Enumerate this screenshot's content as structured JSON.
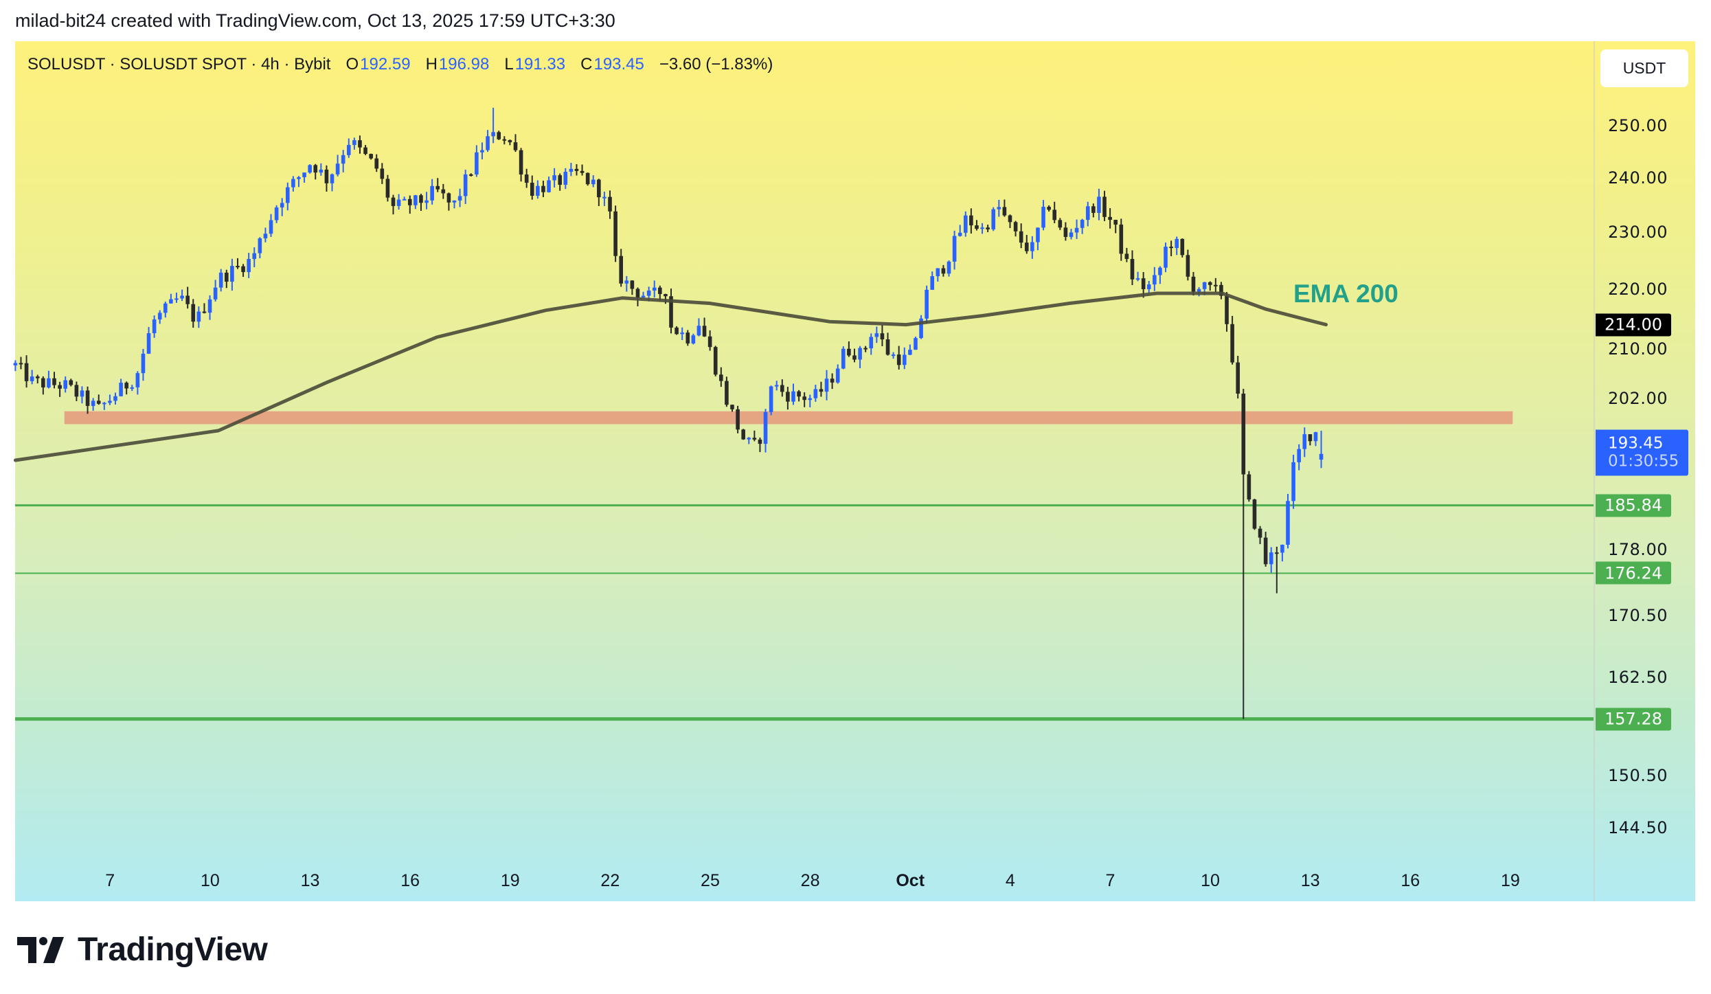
{
  "header": {
    "title": "milad-bit24 created with TradingView.com, Oct 13, 2025 17:59 UTC+3:30"
  },
  "legend": {
    "symbol": "SOLUSDT · SOLUSDT SPOT · 4h · Bybit",
    "o_label": "O",
    "o": "192.59",
    "h_label": "H",
    "h": "196.98",
    "l_label": "L",
    "l": "191.33",
    "c_label": "C",
    "c": "193.45",
    "change": "−3.60 (−1.83%)"
  },
  "currency_button": "USDT",
  "annotation": {
    "ema_label": "EMA 200"
  },
  "current_price": {
    "price": "193.45",
    "countdown": "01:30:55"
  },
  "footer": {
    "brand": "TradingView"
  },
  "colors": {
    "up": "#2962ff",
    "down": "#2a2a2a",
    "ema": "#4a4a38",
    "zone": "#e49c7f",
    "support": "#4caf50",
    "accent": "#22a08a"
  },
  "chart_data": {
    "type": "candlestick",
    "timeframe": "4h",
    "x_unit": "days since Sep 1 2025 (Oct 1 = 30)",
    "y_scale": "log",
    "price_ticks": [
      "250.00",
      "240.00",
      "230.00",
      "220.00",
      "210.00",
      "202.00",
      "178.00",
      "170.50",
      "162.50",
      "150.50",
      "144.50"
    ],
    "time_ticks": [
      {
        "t": 6,
        "label": "7"
      },
      {
        "t": 9,
        "label": "10"
      },
      {
        "t": 12,
        "label": "13"
      },
      {
        "t": 15,
        "label": "16"
      },
      {
        "t": 18,
        "label": "19"
      },
      {
        "t": 21,
        "label": "22"
      },
      {
        "t": 24,
        "label": "25"
      },
      {
        "t": 27,
        "label": "28"
      },
      {
        "t": 30,
        "label": "Oct"
      },
      {
        "t": 33,
        "label": "4"
      },
      {
        "t": 36,
        "label": "7"
      },
      {
        "t": 39,
        "label": "10"
      },
      {
        "t": 42,
        "label": "13"
      },
      {
        "t": 45,
        "label": "16"
      },
      {
        "t": 48,
        "label": "19"
      }
    ],
    "price_path": [
      [
        3.16,
        207.3
      ],
      [
        3.68,
        204.6
      ],
      [
        4.66,
        204.0
      ],
      [
        5.65,
        200.3
      ],
      [
        6.79,
        205.6
      ],
      [
        7.28,
        214.5
      ],
      [
        8.1,
        218.6
      ],
      [
        8.59,
        214.5
      ],
      [
        9.25,
        221.8
      ],
      [
        10.23,
        225.1
      ],
      [
        11.05,
        235.6
      ],
      [
        12.03,
        243.0
      ],
      [
        12.52,
        239.6
      ],
      [
        13.18,
        247.2
      ],
      [
        13.99,
        241.8
      ],
      [
        14.48,
        234.5
      ],
      [
        15.3,
        235.6
      ],
      [
        15.79,
        237.6
      ],
      [
        16.28,
        234.5
      ],
      [
        16.78,
        240.9
      ],
      [
        17.27,
        247.2
      ],
      [
        17.76,
        248.4
      ],
      [
        18.09,
        246.1
      ],
      [
        18.58,
        237.6
      ],
      [
        19.39,
        239.2
      ],
      [
        20.05,
        240.9
      ],
      [
        20.7,
        237.6
      ],
      [
        21.03,
        232.4
      ],
      [
        21.19,
        222.7
      ],
      [
        21.69,
        220.0
      ],
      [
        22.18,
        218.6
      ],
      [
        22.67,
        220.0
      ],
      [
        22.83,
        213.6
      ],
      [
        23.32,
        211.9
      ],
      [
        23.65,
        214.5
      ],
      [
        23.98,
        210.0
      ],
      [
        24.47,
        202.0
      ],
      [
        24.96,
        196.0
      ],
      [
        25.29,
        194.3
      ],
      [
        25.61,
        197.0
      ],
      [
        25.78,
        204.6
      ],
      [
        26.27,
        202.7
      ],
      [
        27.09,
        202.0
      ],
      [
        27.58,
        204.6
      ],
      [
        28.07,
        210.0
      ],
      [
        28.56,
        209.0
      ],
      [
        28.89,
        213.6
      ],
      [
        29.38,
        209.0
      ],
      [
        29.87,
        208.2
      ],
      [
        30.2,
        211.0
      ],
      [
        30.46,
        220.0
      ],
      [
        31.01,
        224.1
      ],
      [
        31.67,
        232.4
      ],
      [
        32.16,
        230.5
      ],
      [
        32.65,
        234.5
      ],
      [
        33.14,
        229.5
      ],
      [
        33.63,
        226.6
      ],
      [
        34.12,
        235.6
      ],
      [
        34.62,
        228.5
      ],
      [
        35.11,
        232.4
      ],
      [
        35.6,
        235.6
      ],
      [
        36.09,
        231.5
      ],
      [
        36.58,
        222.7
      ],
      [
        37.07,
        220.0
      ],
      [
        37.4,
        221.8
      ],
      [
        37.73,
        228.5
      ],
      [
        38.05,
        227.5
      ],
      [
        38.38,
        220.9
      ],
      [
        38.87,
        220.0
      ],
      [
        39.36,
        219.3
      ],
      [
        39.59,
        211.0
      ],
      [
        39.79,
        204.6
      ],
      [
        40.02,
        187.9
      ],
      [
        40.34,
        183.2
      ],
      [
        40.67,
        177.6
      ],
      [
        41.16,
        180.8
      ],
      [
        41.49,
        191.2
      ],
      [
        41.82,
        196.0
      ],
      [
        42.14,
        197.0
      ],
      [
        42.47,
        193.45
      ]
    ],
    "overrides": [
      {
        "t": 39.95,
        "low": 157.28
      },
      {
        "t": 17.5,
        "high": 253.5
      },
      {
        "t": 41.0,
        "low": 173.5
      }
    ],
    "last_candle": {
      "open": 192.59,
      "high": 196.98,
      "low": 191.33,
      "close": 193.45
    },
    "ema200": {
      "name": "EMA 200",
      "points": [
        [
          3.16,
          192.5
        ],
        [
          9.25,
          197.0
        ],
        [
          12.52,
          204.6
        ],
        [
          15.79,
          211.9
        ],
        [
          19.06,
          216.4
        ],
        [
          21.36,
          218.5
        ],
        [
          23.98,
          217.6
        ],
        [
          27.58,
          214.5
        ],
        [
          29.87,
          214.0
        ],
        [
          32.16,
          215.5
        ],
        [
          34.78,
          217.6
        ],
        [
          37.4,
          219.3
        ],
        [
          39.36,
          219.3
        ],
        [
          40.67,
          216.6
        ],
        [
          42.47,
          214.0
        ]
      ]
    },
    "resistance_zone": {
      "low": 198.0,
      "high": 200.0,
      "t_start": 4.63,
      "t_end": 48.07
    },
    "support_lines": [
      {
        "price": 185.84,
        "label": "185.84"
      },
      {
        "price": 176.24,
        "label": "176.24"
      },
      {
        "price": 157.28,
        "label": "157.28"
      }
    ],
    "ema_price_label": "214.00"
  }
}
